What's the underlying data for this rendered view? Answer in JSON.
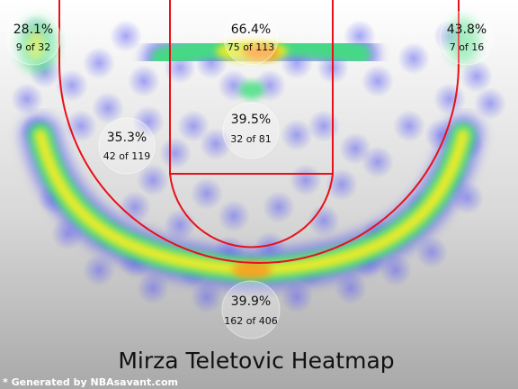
{
  "chart_data": {
    "type": "heatmap",
    "title": "Mirza Teletovic Heatmap",
    "credit": "* Generated by NBAsavant.com",
    "zones": [
      {
        "id": "left-corner",
        "pct": "28.1%",
        "attempts": "9 of 32",
        "made": 9,
        "total": 32
      },
      {
        "id": "restricted-area",
        "pct": "66.4%",
        "attempts": "75 of 113",
        "made": 75,
        "total": 113
      },
      {
        "id": "right-corner",
        "pct": "43.8%",
        "attempts": "7 of 16",
        "made": 7,
        "total": 16
      },
      {
        "id": "left-midrange",
        "pct": "35.3%",
        "attempts": "42 of 119",
        "made": 42,
        "total": 119
      },
      {
        "id": "paint",
        "pct": "39.5%",
        "attempts": "32 of 81",
        "made": 32,
        "total": 81
      },
      {
        "id": "above-break-three",
        "pct": "39.9%",
        "attempts": "162 of 406",
        "made": 162,
        "total": 406
      }
    ],
    "colors": {
      "court_lines": "#e8101a",
      "low_density": "#5a5af0",
      "mid_density": "#3ce07a",
      "high_density": "#f0ec28",
      "peak_density": "#ff8a1e"
    }
  }
}
